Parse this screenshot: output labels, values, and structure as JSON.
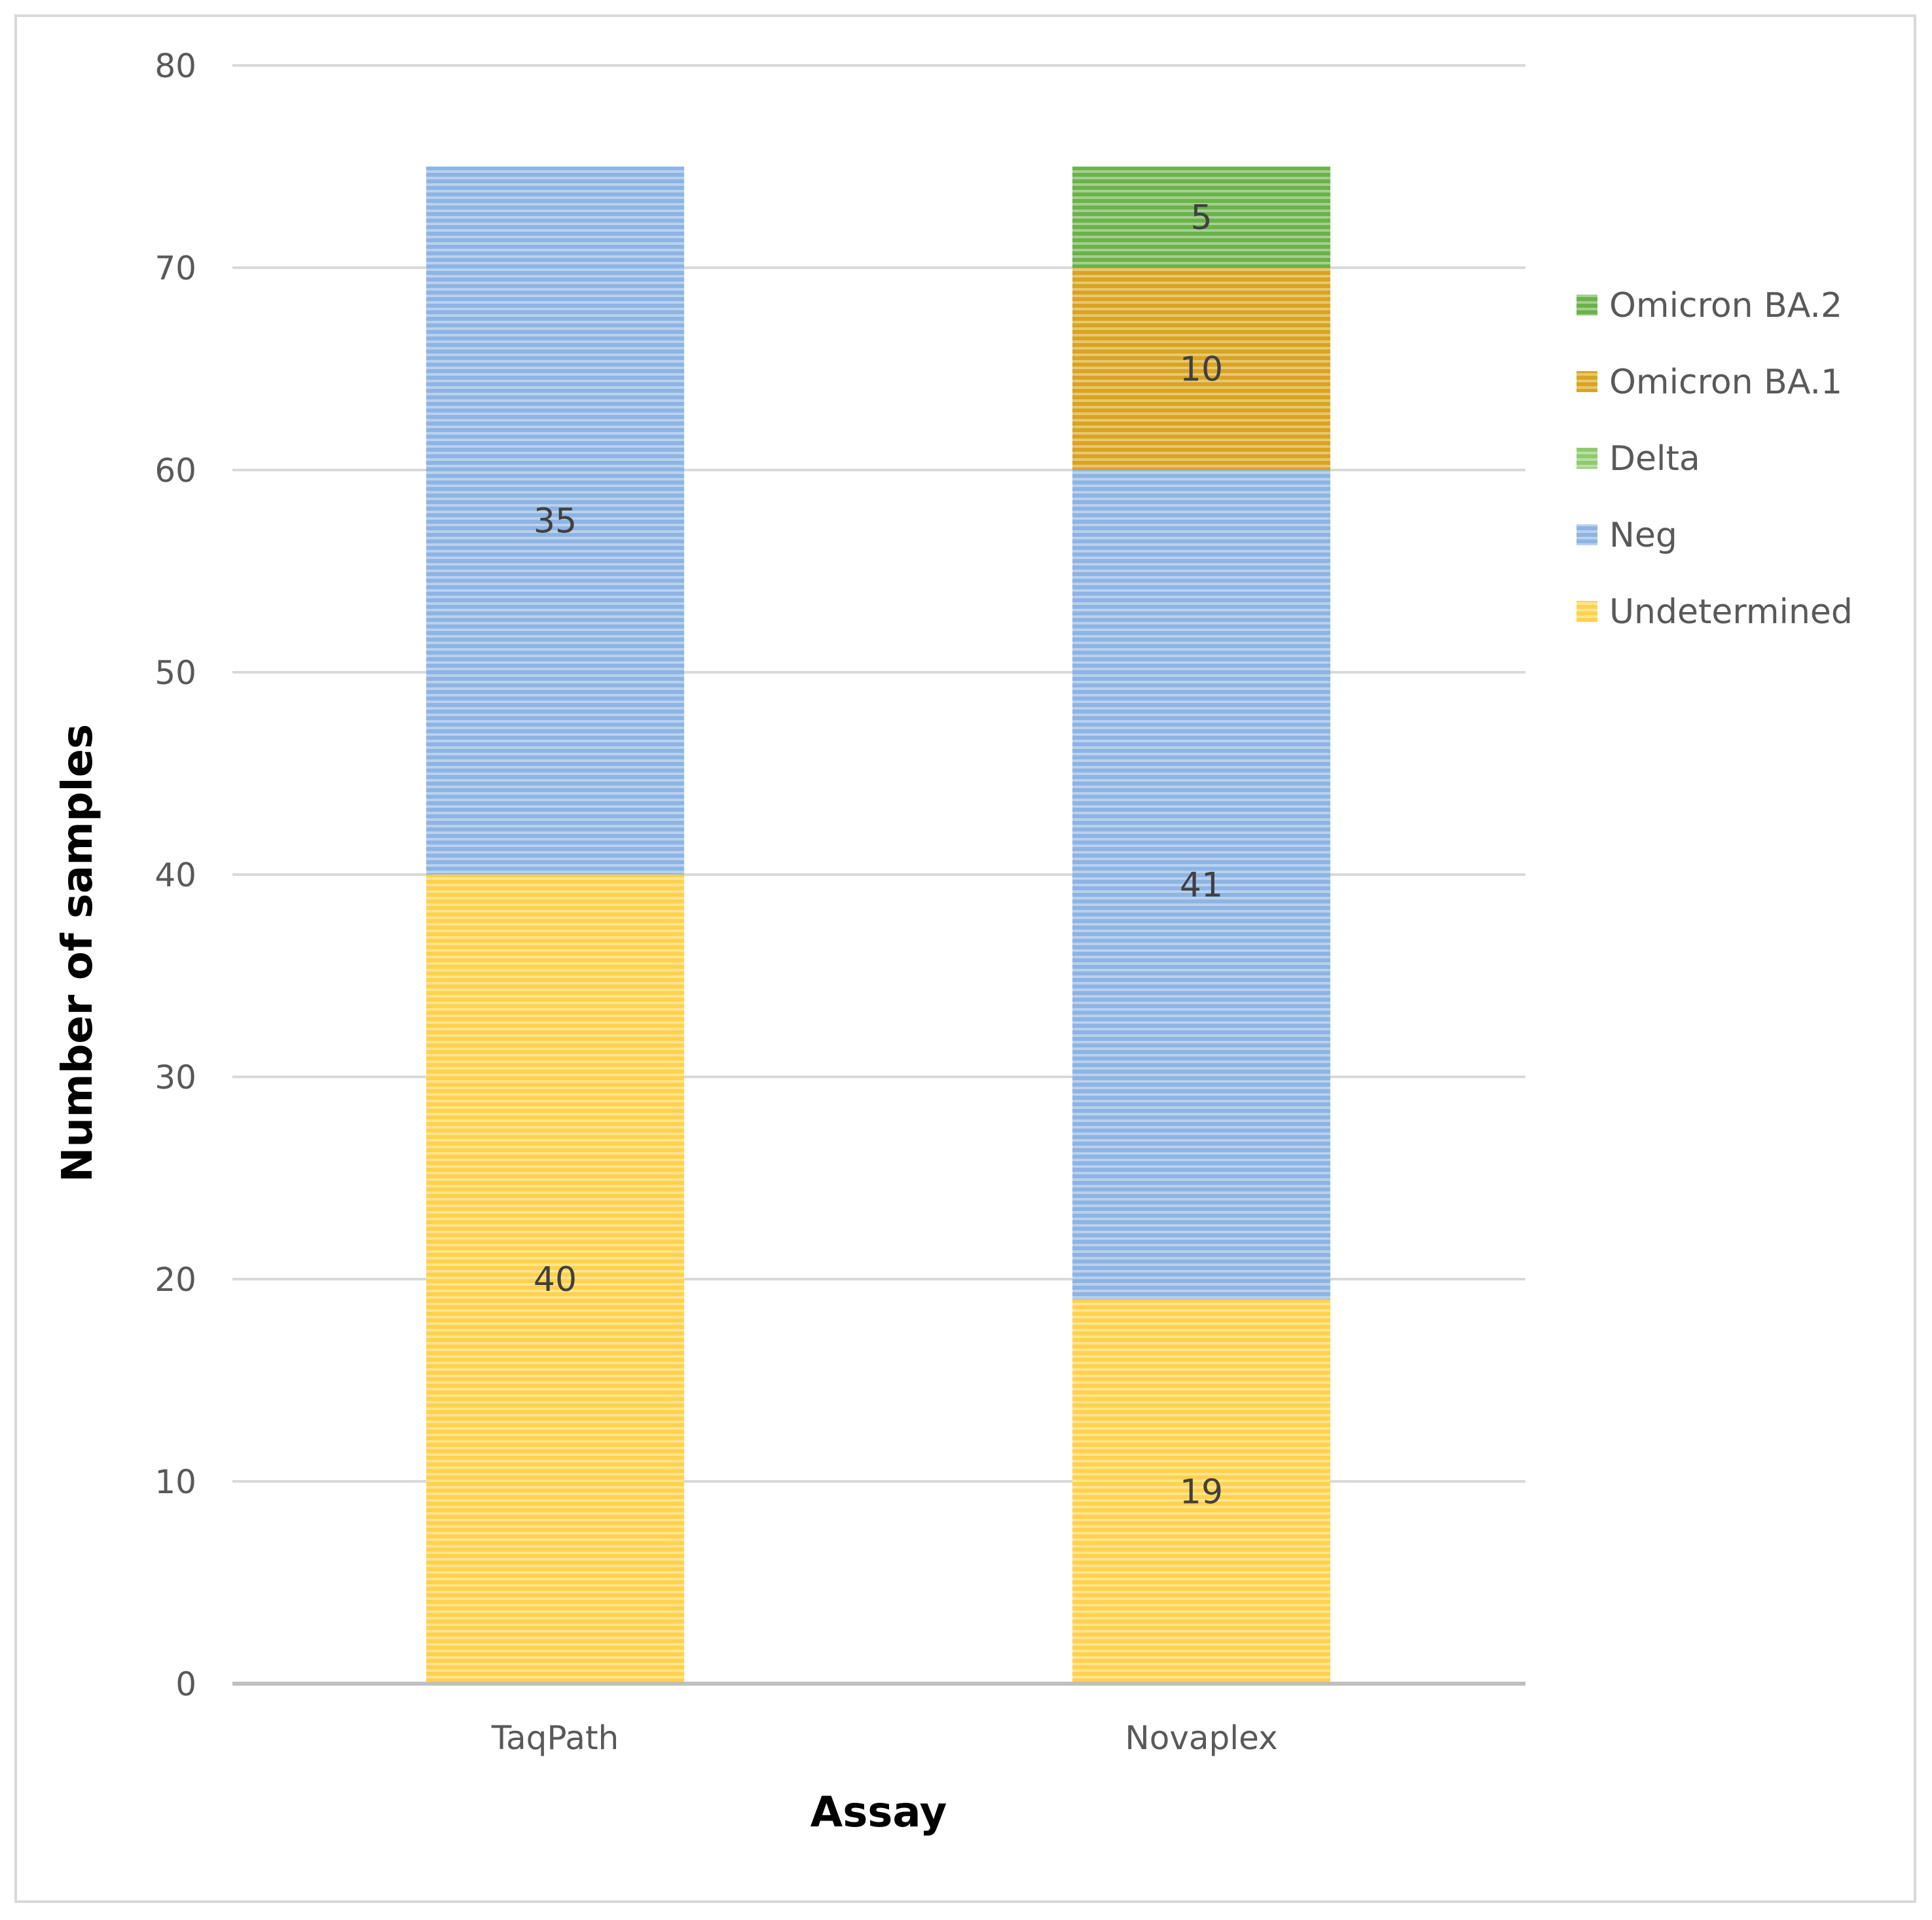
{
  "chart_data": {
    "type": "bar",
    "stacked": true,
    "categories": [
      "TaqPath",
      "Novaplex"
    ],
    "series": [
      {
        "name": "Undetermined",
        "values": [
          40,
          19
        ],
        "color": "#FFD24D",
        "labels": [
          "40",
          "19"
        ]
      },
      {
        "name": "Neg",
        "values": [
          35,
          41
        ],
        "color": "#8EB4E3",
        "labels": [
          "35",
          "41"
        ]
      },
      {
        "name": "Delta",
        "values": [
          0,
          0
        ],
        "color": "#8FCB6E",
        "labels": [
          "",
          ""
        ]
      },
      {
        "name": "Omicron BA.1",
        "values": [
          0,
          10
        ],
        "color": "#D9A520",
        "labels": [
          "",
          "10"
        ]
      },
      {
        "name": "Omicron BA.2",
        "values": [
          0,
          5
        ],
        "color": "#6BB24A",
        "labels": [
          "",
          "5"
        ]
      }
    ],
    "xlabel": "Assay",
    "ylabel": "Number of samples",
    "ylim": [
      0,
      80
    ],
    "yticks": [
      "0",
      "10",
      "20",
      "30",
      "40",
      "50",
      "60",
      "70",
      "80"
    ],
    "grid": true,
    "legend_position": "right",
    "legend_order": [
      "Omicron BA.2",
      "Omicron BA.1",
      "Delta",
      "Neg",
      "Undetermined"
    ],
    "bar_texture": "horizontal-stripes"
  }
}
